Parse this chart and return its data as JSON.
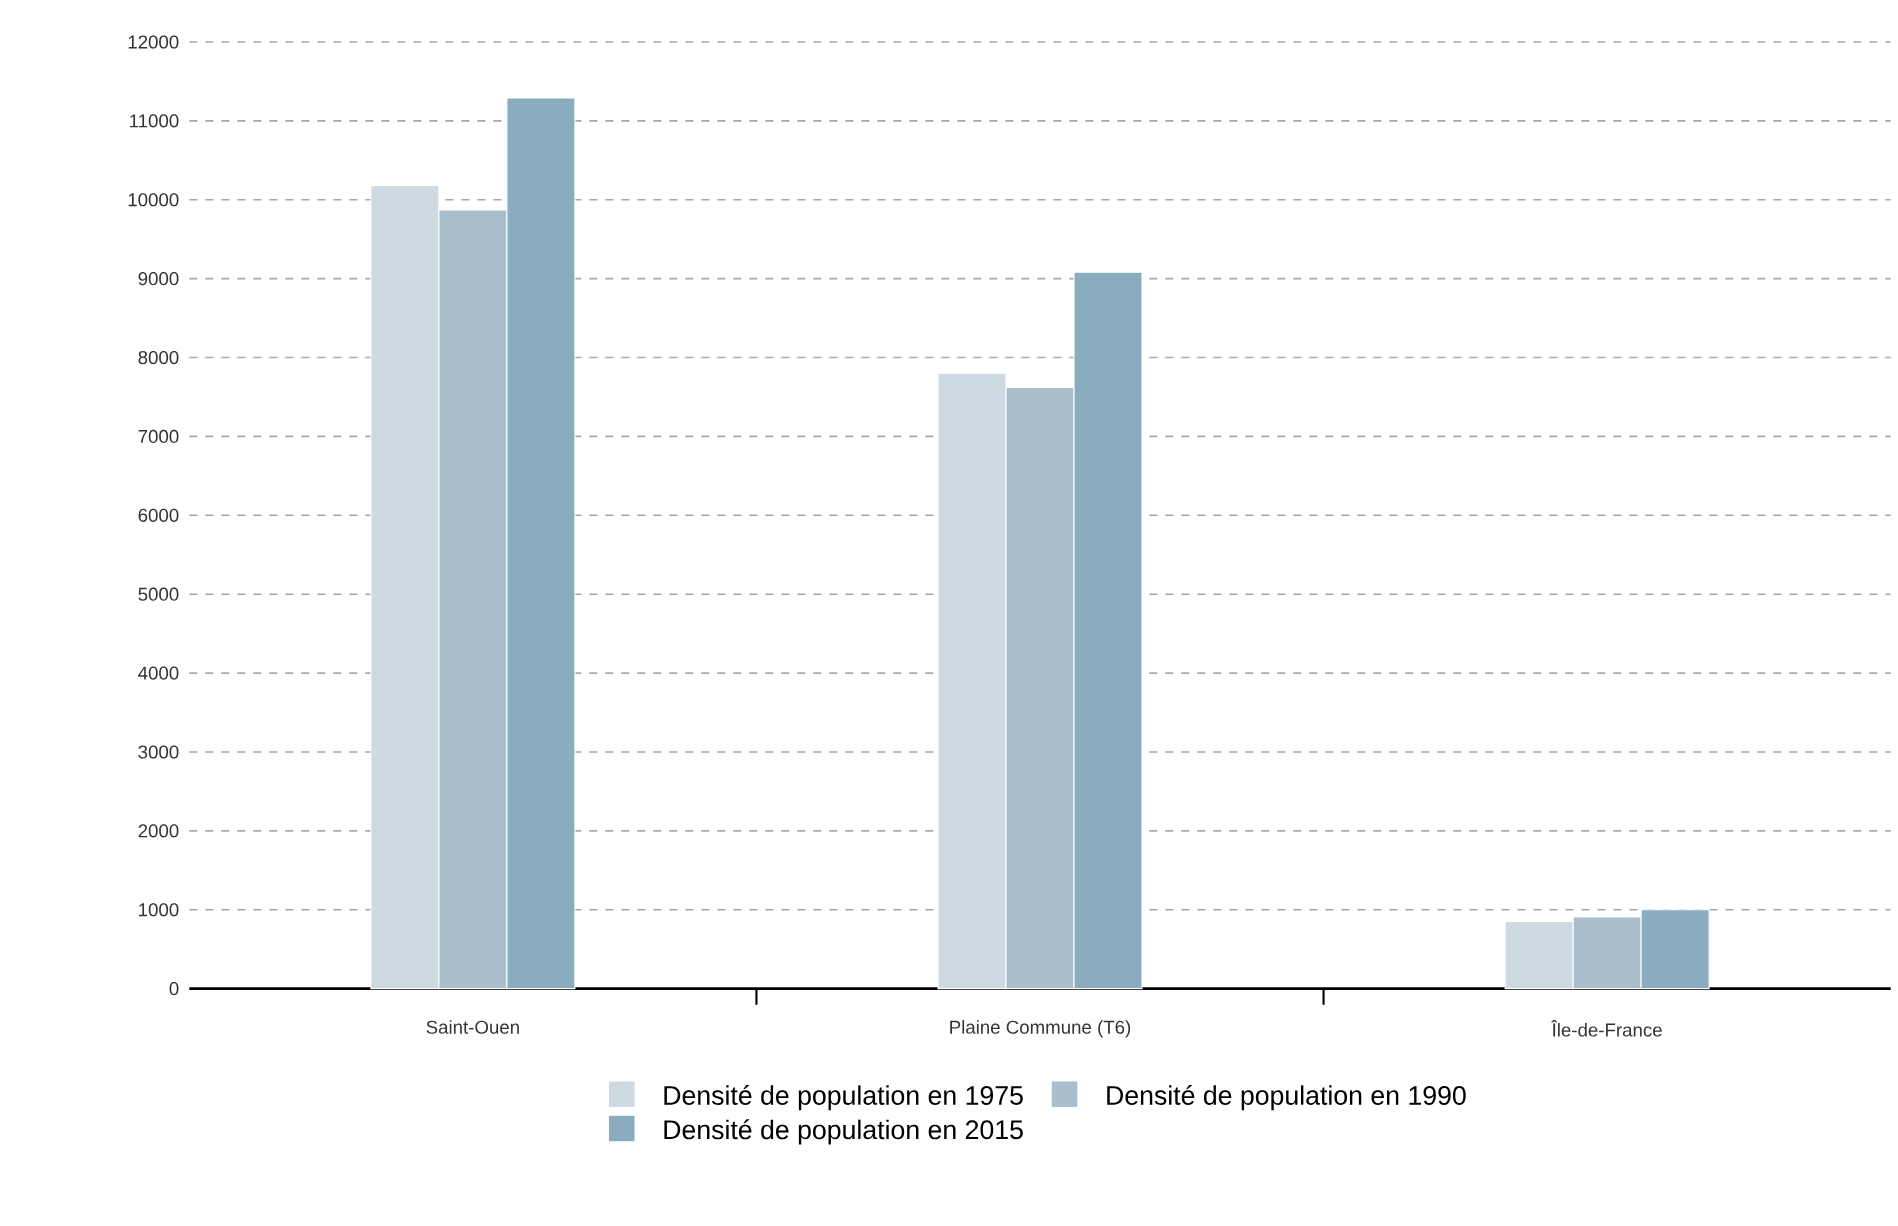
{
  "chart_data": {
    "type": "bar",
    "categories": [
      "Saint-Ouen",
      "Plaine Commune (T6)",
      "Île-de-France"
    ],
    "series": [
      {
        "name": "Densité de population en 1975",
        "color": "#cddae2",
        "values": [
          10180,
          7800,
          850
        ]
      },
      {
        "name": "Densité de population en 1990",
        "color": "#a9bfcc",
        "values": [
          9870,
          7620,
          910
        ]
      },
      {
        "name": "Densité de population en 2015",
        "color": "#8aacbf",
        "values": [
          11290,
          9080,
          1000
        ]
      }
    ],
    "ylim": [
      0,
      12000
    ],
    "yticks": [
      0,
      1000,
      2000,
      3000,
      4000,
      5000,
      6000,
      7000,
      8000,
      9000,
      10000,
      11000,
      12000
    ],
    "grid": "y",
    "legend": "bottom"
  }
}
